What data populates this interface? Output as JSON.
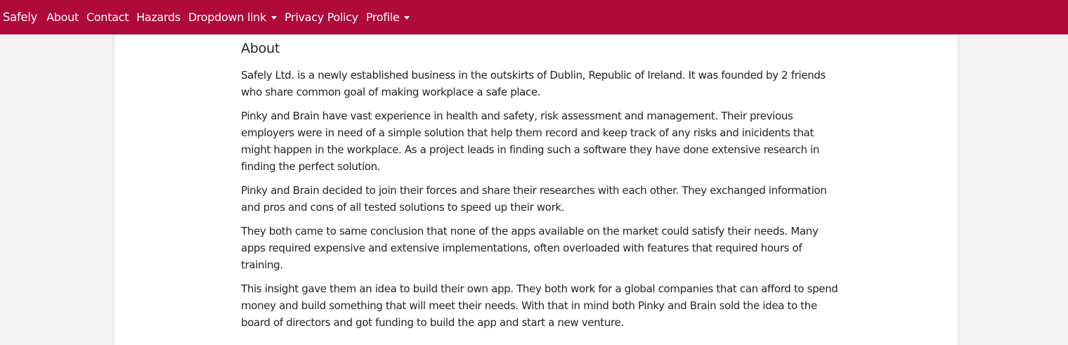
{
  "navbar": {
    "brand": "Safely",
    "links": {
      "about": "About",
      "contact": "Contact",
      "hazards": "Hazards",
      "dropdown": "Dropdown link",
      "privacy": "Privacy Policy",
      "profile": "Profile"
    },
    "color": "#b0093b"
  },
  "main": {
    "title": "About",
    "paragraphs": [
      "Safely Ltd. is a newly established business in the outskirts of Dublin, Republic of Ireland. It was founded by 2 friends who share common goal of making workplace a safe place.",
      "Pinky and Brain have vast experience in health and safety, risk assessment and management. Their previous employers were in need of a simple solution that help them record and keep track of any risks and inicidents that might happen in the workplace. As a project leads in finding such a software they have done extensive research in finding the perfect solution.",
      "Pinky and Brain decided to join their forces and share their researches with each other. They exchanged information and pros and cons of all tested solutions to speed up their work.",
      "They both came to same conclusion that none of the apps available on the market could satisfy their needs. Many apps required expensive and extensive implementations, often overloaded with features that required hours of training.",
      "This insight gave them an idea to build their own app. They both work for a global companies that can afford to spend money and build something that will meet their needs. With that in mind both Pinky and Brain sold the idea to the board of directors and got funding to build the app and start a new venture."
    ]
  }
}
